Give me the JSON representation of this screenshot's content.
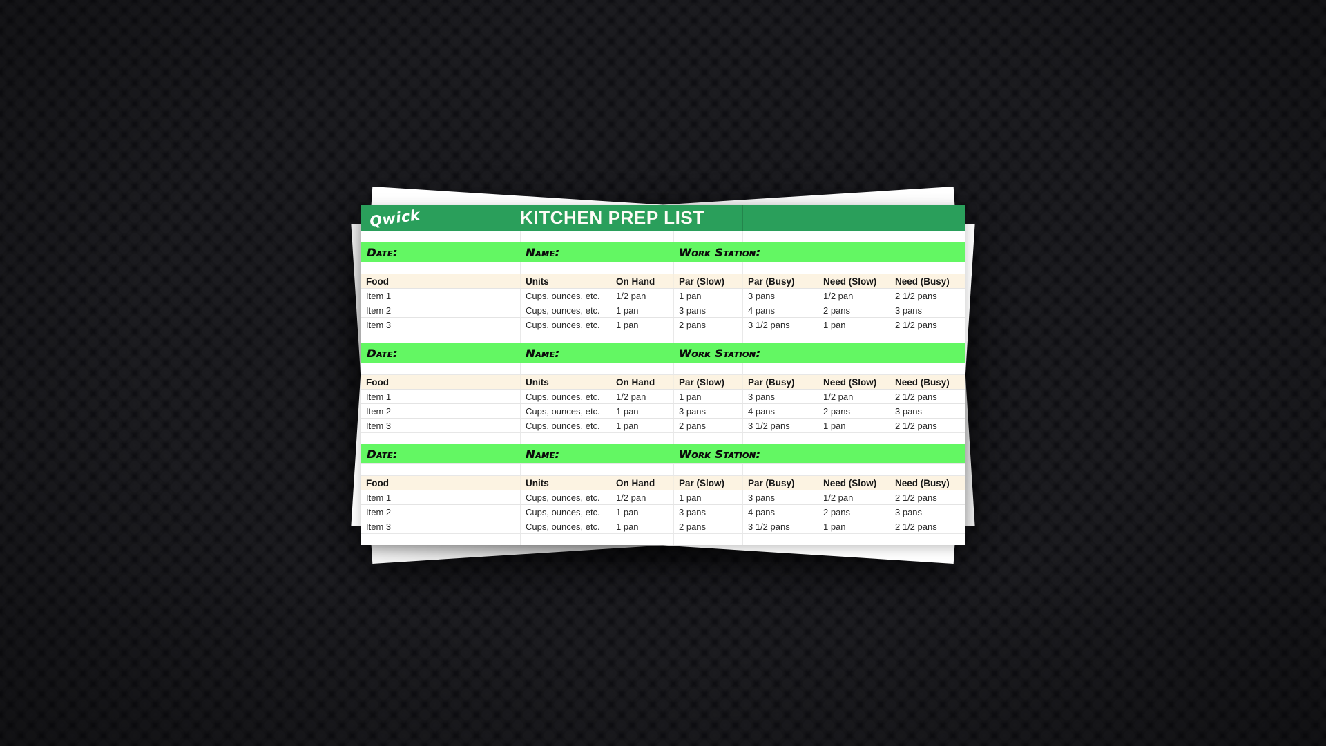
{
  "background": {
    "base_color": "#0f0f13",
    "pattern": "dark-checker"
  },
  "document": {
    "brand": "Qwick",
    "title": "KITCHEN PREP LIST",
    "colors": {
      "brand_green": "#2a9f5b",
      "highlight_green": "#63f763",
      "header_cream": "#fcf3e2",
      "paper": "#ffffff"
    },
    "info_labels": {
      "date": "Date:",
      "name": "Name:",
      "work_station": "Work Station:"
    },
    "section_count": 3,
    "table": {
      "columns": [
        "Food",
        "Units",
        "On Hand",
        "Par (Slow)",
        "Par (Busy)",
        "Need (Slow)",
        "Need (Busy)"
      ],
      "rows": [
        [
          "Item 1",
          "Cups, ounces, etc.",
          "1/2 pan",
          "1 pan",
          "3 pans",
          "1/2 pan",
          "2 1/2 pans"
        ],
        [
          "Item 2",
          "Cups, ounces, etc.",
          "1 pan",
          "3 pans",
          "4 pans",
          "2 pans",
          "3 pans"
        ],
        [
          "Item 3",
          "Cups, ounces, etc.",
          "1 pan",
          "2 pans",
          "3 1/2 pans",
          "1 pan",
          "2 1/2 pans"
        ]
      ]
    }
  }
}
